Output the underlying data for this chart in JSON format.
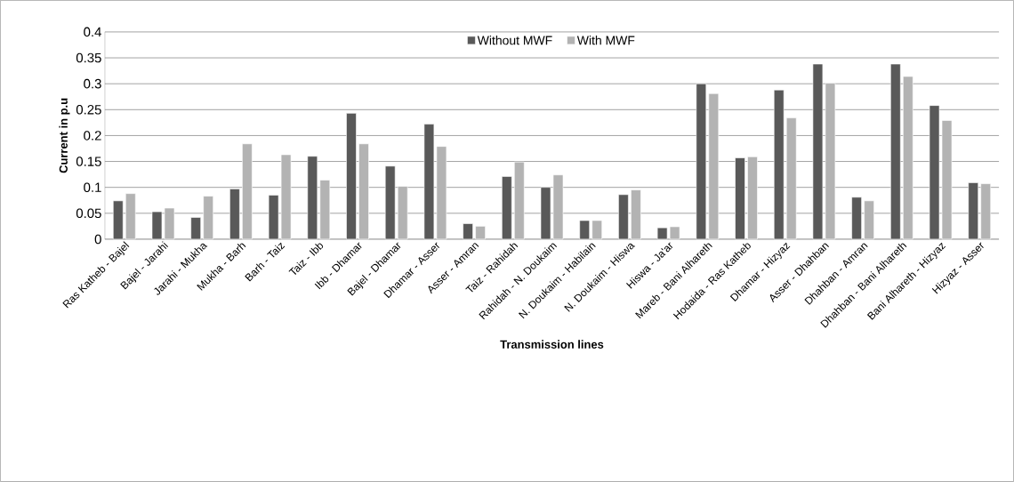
{
  "chart_data": {
    "type": "bar",
    "xlabel": "Transmission lines",
    "ylabel": "Current in p.u",
    "categories": [
      "Ras Katheb - Bajel",
      "Bajel - Jarahi",
      "Jarahi - Mukha",
      "Mukha - Barh",
      "Barh - Taiz",
      "Taiz - Ibb",
      "Ibb - Dhamar",
      "Bajel - Dhamar",
      "Dhamar - Asser",
      "Asser - Amran",
      "Taiz - Rahidah",
      "Rahidah - N. Doukaim",
      "N. Doukaim - Habilain",
      "N. Doukaim - Hiswa",
      "Hiswa - Ja'ar",
      "Mareb - Bani Alhareth",
      "Hodaida - Ras Katheb",
      "Dhamar - Hizyaz",
      "Asser - Dhahban",
      "Dhahban - Amran",
      "Dhahban - Bani Alhareth",
      "Bani Alhareth - Hizyaz",
      "Hizyaz - Asser"
    ],
    "series": [
      {
        "name": "Without MWF",
        "color": "#595959",
        "values": [
          0.074,
          0.053,
          0.042,
          0.097,
          0.085,
          0.16,
          0.243,
          0.141,
          0.222,
          0.03,
          0.121,
          0.1,
          0.036,
          0.086,
          0.022,
          0.3,
          0.157,
          0.288,
          0.338,
          0.081,
          0.338,
          0.258,
          0.109
        ]
      },
      {
        "name": "With MWF",
        "color": "#b3b3b3",
        "values": [
          0.088,
          0.06,
          0.083,
          0.184,
          0.163,
          0.114,
          0.184,
          0.102,
          0.179,
          0.025,
          0.149,
          0.124,
          0.036,
          0.095,
          0.024,
          0.281,
          0.159,
          0.234,
          0.301,
          0.074,
          0.314,
          0.229,
          0.107
        ]
      }
    ],
    "ylim": [
      0,
      0.4
    ],
    "yticks": [
      0,
      0.05,
      0.1,
      0.15,
      0.2,
      0.25,
      0.3,
      0.35,
      0.4
    ],
    "grid": "y",
    "legend": "top"
  }
}
